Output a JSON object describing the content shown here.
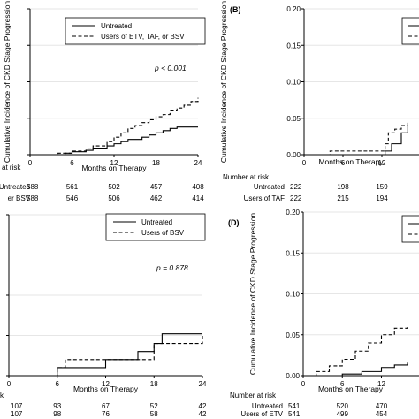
{
  "chart_data": [
    {
      "id": "A",
      "type": "line",
      "panel_label": "",
      "ylabel": "Cumulative Incidence of CKD Stage Progression",
      "xlabel": "Months on Therapy",
      "xlim": [
        0,
        24
      ],
      "ylim": [
        0,
        0.2
      ],
      "xticks": [
        "0",
        "6",
        "12",
        "18",
        "24"
      ],
      "yticks": [
        "0.00",
        "0.05",
        "0.10",
        "0.15",
        "0.20"
      ],
      "show_ytick_labels": false,
      "grid": true,
      "legend_position": "top-right",
      "annotation": "p < 0.001",
      "series": [
        {
          "name": "Untreated",
          "style": "solid",
          "x": [
            0,
            5,
            6,
            8,
            9,
            11,
            12,
            13,
            14,
            16,
            17,
            18,
            19,
            20,
            21,
            24
          ],
          "y": [
            0,
            0.002,
            0.004,
            0.006,
            0.009,
            0.012,
            0.015,
            0.018,
            0.021,
            0.024,
            0.027,
            0.03,
            0.033,
            0.036,
            0.038,
            0.038
          ]
        },
        {
          "name": "Users of ETV, TAF, or BSV",
          "style": "dashed",
          "x": [
            0,
            4,
            6,
            8,
            9,
            11,
            12,
            13,
            14,
            15,
            16,
            17,
            18,
            19,
            20,
            21,
            22,
            23,
            24
          ],
          "y": [
            0,
            0.002,
            0.005,
            0.008,
            0.012,
            0.018,
            0.024,
            0.03,
            0.036,
            0.04,
            0.044,
            0.048,
            0.052,
            0.055,
            0.06,
            0.064,
            0.068,
            0.073,
            0.078
          ]
        }
      ],
      "risk_table": {
        "header": "at risk",
        "rows": [
          {
            "label": "Untreated",
            "n0": "588",
            "values": [
              "561",
              "502",
              "457",
              "408"
            ]
          },
          {
            "label": "er BSV",
            "n0": "588",
            "values": [
              "546",
              "506",
              "462",
              "414"
            ]
          }
        ]
      }
    },
    {
      "id": "B",
      "type": "line",
      "panel_label": "(B)",
      "ylabel": "Cumulative Incidence of CKD Stage Progression",
      "xlabel": "Months on Therapy",
      "xlim": [
        0,
        24
      ],
      "ylim": [
        0,
        0.2
      ],
      "xticks": [
        "0",
        "6",
        "12"
      ],
      "yticks": [
        "0.00",
        "0.05",
        "0.10",
        "0.15",
        "0.20"
      ],
      "show_ytick_labels": true,
      "grid": true,
      "legend_position": "top-right",
      "series": [
        {
          "name": "",
          "style": "solid",
          "x": [
            0,
            12.5,
            13.5,
            15,
            16
          ],
          "y": [
            0,
            0.005,
            0.015,
            0.03,
            0.04
          ]
        },
        {
          "name": "",
          "style": "dashed",
          "x": [
            0,
            4,
            12,
            12.5,
            13,
            14,
            15,
            16
          ],
          "y": [
            0,
            0.005,
            0.005,
            0.015,
            0.03,
            0.035,
            0.04,
            0.045
          ]
        }
      ],
      "risk_table": {
        "header": "Number at risk",
        "rows": [
          {
            "label": "Untreated",
            "n0": "222",
            "values": [
              "198",
              "159"
            ]
          },
          {
            "label": "Users of TAF",
            "n0": "222",
            "values": [
              "215",
              "194"
            ]
          }
        ]
      }
    },
    {
      "id": "C",
      "type": "line",
      "panel_label": "",
      "ylabel": "",
      "xlabel": "Months on Therapy",
      "xlim": [
        0,
        24
      ],
      "ylim": [
        0,
        0.2
      ],
      "xticks": [
        "0",
        "6",
        "12",
        "18",
        "24"
      ],
      "yticks": [
        "0.00",
        "0.05",
        "0.10",
        "0.15",
        "0.20"
      ],
      "show_ytick_labels": false,
      "grid": true,
      "legend_position": "top-right",
      "annotation": "p = 0.878",
      "series": [
        {
          "name": "Untreated",
          "style": "solid",
          "x": [
            0,
            6,
            12,
            16,
            18,
            19,
            24
          ],
          "y": [
            0,
            0.01,
            0.02,
            0.03,
            0.04,
            0.052,
            0.052
          ]
        },
        {
          "name": "Users of BSV",
          "style": "dashed",
          "x": [
            0,
            6,
            7,
            12,
            18,
            24
          ],
          "y": [
            0,
            0.01,
            0.02,
            0.02,
            0.04,
            0.052
          ]
        }
      ],
      "risk_table": {
        "header": "k",
        "rows": [
          {
            "label": "",
            "n0": "107",
            "values": [
              "93",
              "67",
              "52",
              "42"
            ]
          },
          {
            "label": "",
            "n0": "107",
            "values": [
              "98",
              "76",
              "58",
              "42"
            ]
          }
        ]
      }
    },
    {
      "id": "D",
      "type": "line",
      "panel_label": "(D)",
      "ylabel": "Cumulative Incidence of CKD Stage Progression",
      "xlabel": "Months on Therapy",
      "xlim": [
        0,
        24
      ],
      "ylim": [
        0,
        0.2
      ],
      "xticks": [
        "0",
        "6",
        "12"
      ],
      "yticks": [
        "0.00",
        "0.05",
        "0.10",
        "0.15",
        "0.20"
      ],
      "show_ytick_labels": true,
      "grid": true,
      "legend_position": "top-right",
      "series": [
        {
          "name": "",
          "style": "solid",
          "x": [
            0,
            6,
            9,
            12,
            14,
            16
          ],
          "y": [
            0,
            0.002,
            0.005,
            0.01,
            0.013,
            0.016
          ]
        },
        {
          "name": "",
          "style": "dashed",
          "x": [
            0,
            2,
            4,
            6,
            8,
            10,
            12,
            14,
            16
          ],
          "y": [
            0,
            0.005,
            0.012,
            0.02,
            0.03,
            0.04,
            0.05,
            0.058,
            0.062
          ]
        }
      ],
      "risk_table": {
        "header": "Number at risk",
        "rows": [
          {
            "label": "Untreated",
            "n0": "541",
            "values": [
              "520",
              "470"
            ]
          },
          {
            "label": "Users of ETV",
            "n0": "541",
            "values": [
              "499",
              "454"
            ]
          }
        ]
      }
    }
  ]
}
